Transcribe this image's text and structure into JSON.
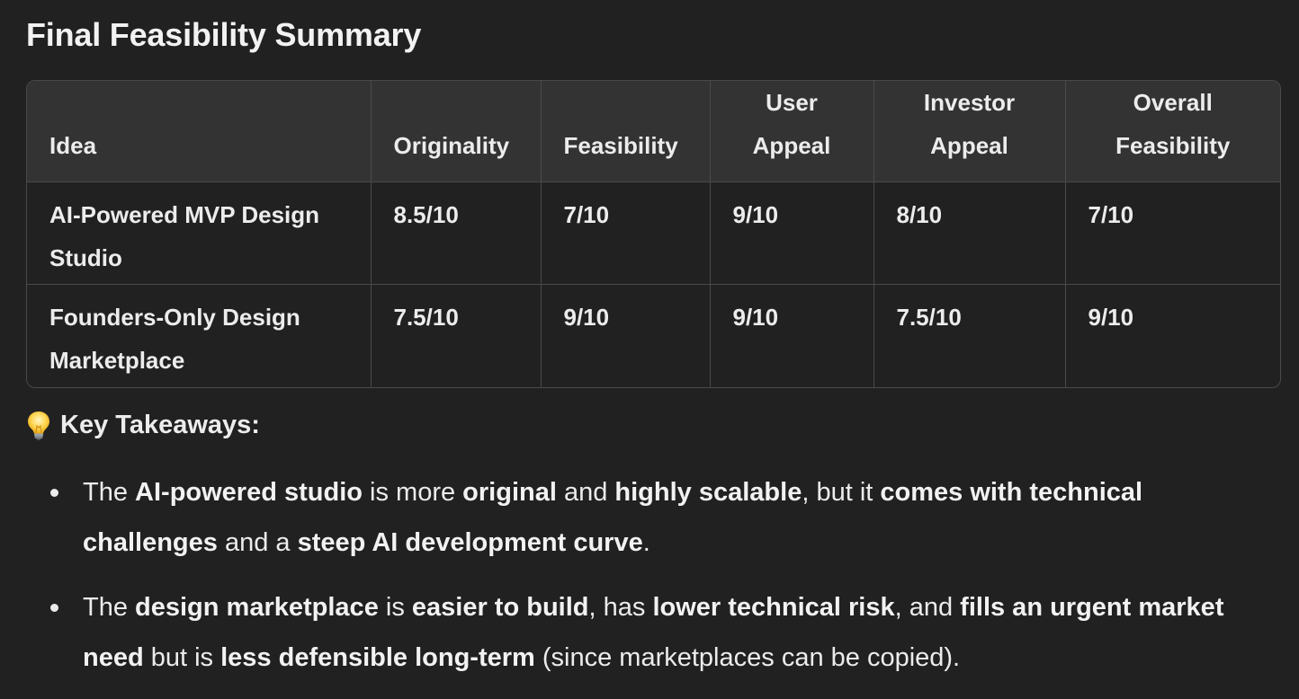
{
  "title": "Final Feasibility Summary",
  "table": {
    "headers": [
      {
        "line1": "",
        "line2": "Idea"
      },
      {
        "line1": "",
        "line2": "Originality"
      },
      {
        "line1": "",
        "line2": "Feasibility"
      },
      {
        "line1": "User",
        "line2": "Appeal"
      },
      {
        "line1": "Investor",
        "line2": "Appeal"
      },
      {
        "line1": "Overall",
        "line2": "Feasibility"
      }
    ],
    "rows": [
      {
        "idea_line1": "AI-Powered MVP Design",
        "idea_line2": "Studio",
        "originality": "8.5/10",
        "feasibility": "7/10",
        "user_appeal": "9/10",
        "investor_appeal": "8/10",
        "overall": "7/10"
      },
      {
        "idea_line1": "Founders-Only Design",
        "idea_line2": "Marketplace",
        "originality": "7.5/10",
        "feasibility": "9/10",
        "user_appeal": "9/10",
        "investor_appeal": "7.5/10",
        "overall": "9/10"
      }
    ]
  },
  "takeaways": {
    "icon": "lightbulb-icon",
    "heading": "Key Takeaways:",
    "points": [
      {
        "segments": [
          {
            "t": "The ",
            "b": false
          },
          {
            "t": "AI-powered studio",
            "b": true
          },
          {
            "t": " is more ",
            "b": false
          },
          {
            "t": "original",
            "b": true
          },
          {
            "t": " and ",
            "b": false
          },
          {
            "t": "highly scalable",
            "b": true
          },
          {
            "t": ", but it ",
            "b": false
          },
          {
            "t": "comes with technical challenges",
            "b": true
          },
          {
            "t": " and a ",
            "b": false
          },
          {
            "t": "steep AI development curve",
            "b": true
          },
          {
            "t": ".",
            "b": false
          }
        ]
      },
      {
        "segments": [
          {
            "t": "The ",
            "b": false
          },
          {
            "t": "design marketplace",
            "b": true
          },
          {
            "t": " is ",
            "b": false
          },
          {
            "t": "easier to build",
            "b": true
          },
          {
            "t": ", has ",
            "b": false
          },
          {
            "t": "lower technical risk",
            "b": true
          },
          {
            "t": ", and ",
            "b": false
          },
          {
            "t": "fills an urgent market need",
            "b": true
          },
          {
            "t": " but is ",
            "b": false
          },
          {
            "t": "less defensible long-term",
            "b": true
          },
          {
            "t": " (since marketplaces can be copied).",
            "b": false
          }
        ]
      }
    ]
  },
  "colors": {
    "background": "#212121",
    "header_bg": "#333333",
    "border": "#4a4a4a",
    "text": "#ececec"
  }
}
